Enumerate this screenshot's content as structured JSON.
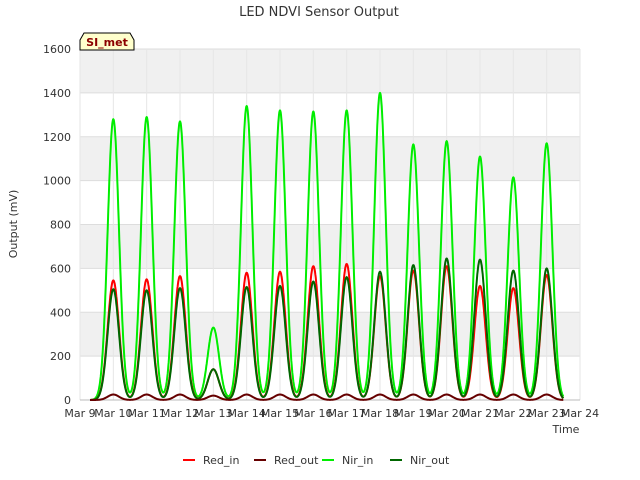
{
  "chart_data": {
    "type": "line",
    "title": "LED NDVI Sensor Output",
    "xlabel": "Time",
    "ylabel": "Output (mV)",
    "ylim": [
      0,
      1600
    ],
    "xlim": [
      "2024-03-09",
      "2024-03-24"
    ],
    "yticks": [
      0,
      200,
      400,
      600,
      800,
      1000,
      1200,
      1400,
      1600
    ],
    "xticks": [
      "Mar 9",
      "Mar 10",
      "Mar 11",
      "Mar 12",
      "Mar 13",
      "Mar 14",
      "Mar 15",
      "Mar 16",
      "Mar 17",
      "Mar 18",
      "Mar 19",
      "Mar 20",
      "Mar 21",
      "Mar 22",
      "Mar 23",
      "Mar 24"
    ],
    "grid": true,
    "background_bands": "alternating light grey",
    "legend_position": "bottom",
    "site_label": "SI_met",
    "series": [
      {
        "name": "Red_in",
        "color": "#ff0000",
        "peaks": [
          545,
          550,
          565,
          140,
          580,
          585,
          610,
          620,
          565,
          590,
          610,
          520,
          510,
          570
        ]
      },
      {
        "name": "Red_out",
        "color": "#660000",
        "peaks": [
          25,
          25,
          25,
          20,
          25,
          25,
          25,
          25,
          25,
          25,
          25,
          25,
          25,
          25
        ]
      },
      {
        "name": "Nir_in",
        "color": "#00ee00",
        "peaks": [
          1280,
          1290,
          1270,
          330,
          1340,
          1320,
          1315,
          1320,
          1400,
          1165,
          1180,
          1110,
          1015,
          1170
        ]
      },
      {
        "name": "Nir_out",
        "color": "#006600",
        "peaks": [
          505,
          500,
          510,
          140,
          515,
          520,
          540,
          560,
          585,
          615,
          645,
          640,
          590,
          600
        ]
      }
    ],
    "day_peaks_x": [
      "2024-03-10",
      "2024-03-11",
      "2024-03-12",
      "2024-03-13",
      "2024-03-14",
      "2024-03-15",
      "2024-03-16",
      "2024-03-17",
      "2024-03-18",
      "2024-03-19",
      "2024-03-20",
      "2024-03-21",
      "2024-03-22",
      "2024-03-23"
    ]
  }
}
